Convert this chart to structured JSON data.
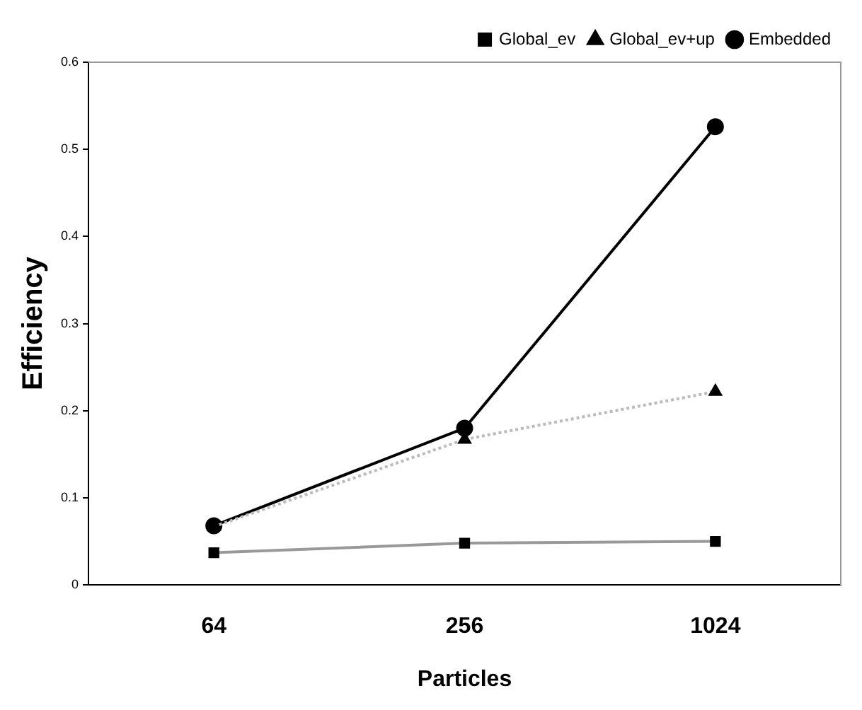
{
  "chart_data": {
    "type": "line",
    "xlabel": "Particles",
    "ylabel": "Efficiency",
    "categories": [
      "64",
      "256",
      "1024"
    ],
    "series": [
      {
        "name": "Global_ev",
        "color": "#999999",
        "values": [
          0.037,
          0.048,
          0.05
        ],
        "marker": "square",
        "line_style": "solid"
      },
      {
        "name": "Global_ev+up",
        "color": "#bbbbbb",
        "values": [
          0.067,
          0.167,
          0.222
        ],
        "marker": "triangle",
        "line_style": "dotted"
      },
      {
        "name": "Embedded",
        "color": "#000000",
        "values": [
          0.068,
          0.18,
          0.526
        ],
        "marker": "circle",
        "line_style": "solid"
      }
    ],
    "ylim": [
      0,
      0.6
    ],
    "yticks": [
      0,
      0.1,
      0.2,
      0.3,
      0.4,
      0.5,
      0.6
    ],
    "legend": "top right",
    "grid": false
  }
}
